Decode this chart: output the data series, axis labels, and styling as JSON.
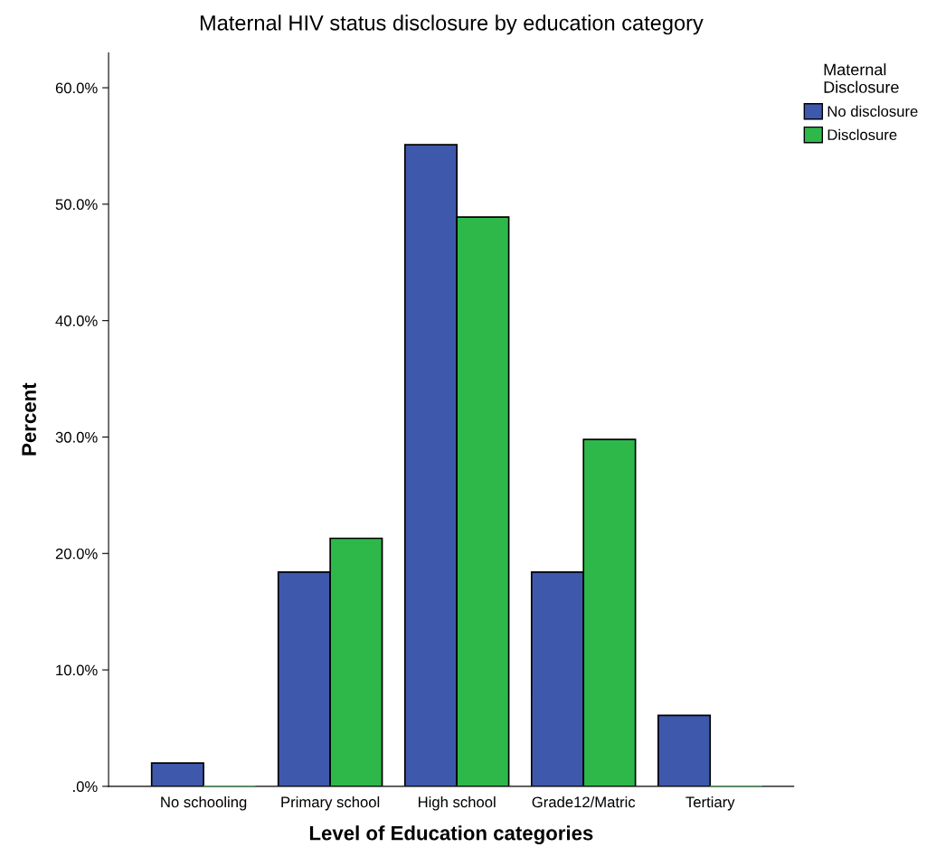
{
  "chart_data": {
    "type": "bar",
    "title": "Maternal HIV status disclosure by education category",
    "xlabel": "Level of Education categories",
    "ylabel": "Percent",
    "legend_title": "Maternal\nDisclosure",
    "categories": [
      "No schooling",
      "Primary school",
      "High school",
      "Grade12/Matric",
      "Tertiary"
    ],
    "series": [
      {
        "name": "No disclosure",
        "color": "#3e58ac",
        "values": [
          2.0,
          18.4,
          55.1,
          18.4,
          6.1
        ]
      },
      {
        "name": "Disclosure",
        "color": "#2eb84a",
        "values": [
          0,
          21.3,
          48.9,
          29.8,
          0
        ]
      }
    ],
    "ylim": [
      0,
      63
    ],
    "yticks": [
      {
        "value": 0,
        "label": ".0%"
      },
      {
        "value": 10,
        "label": "10.0%"
      },
      {
        "value": 20,
        "label": "20.0%"
      },
      {
        "value": 30,
        "label": "30.0%"
      },
      {
        "value": 40,
        "label": "40.0%"
      },
      {
        "value": 50,
        "label": "50.0%"
      },
      {
        "value": 60,
        "label": "60.0%"
      }
    ],
    "grid": false,
    "legend": "top right"
  }
}
